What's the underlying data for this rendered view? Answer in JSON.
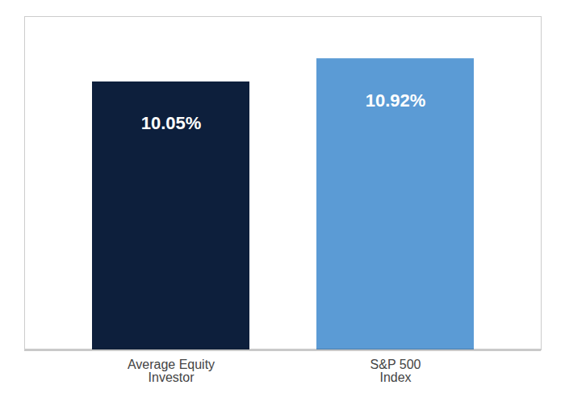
{
  "chart_data": {
    "type": "bar",
    "categories": [
      "Average Equity\nInvestor",
      "S&P 500\nIndex"
    ],
    "values": [
      10.05,
      10.92
    ],
    "value_labels": [
      "10.05%",
      "10.92%"
    ],
    "colors": [
      "#0d1f3c",
      "#5b9bd5"
    ],
    "ylim": [
      0,
      12.5
    ],
    "data_labels": true,
    "tick_labels": "x",
    "grid": false
  }
}
